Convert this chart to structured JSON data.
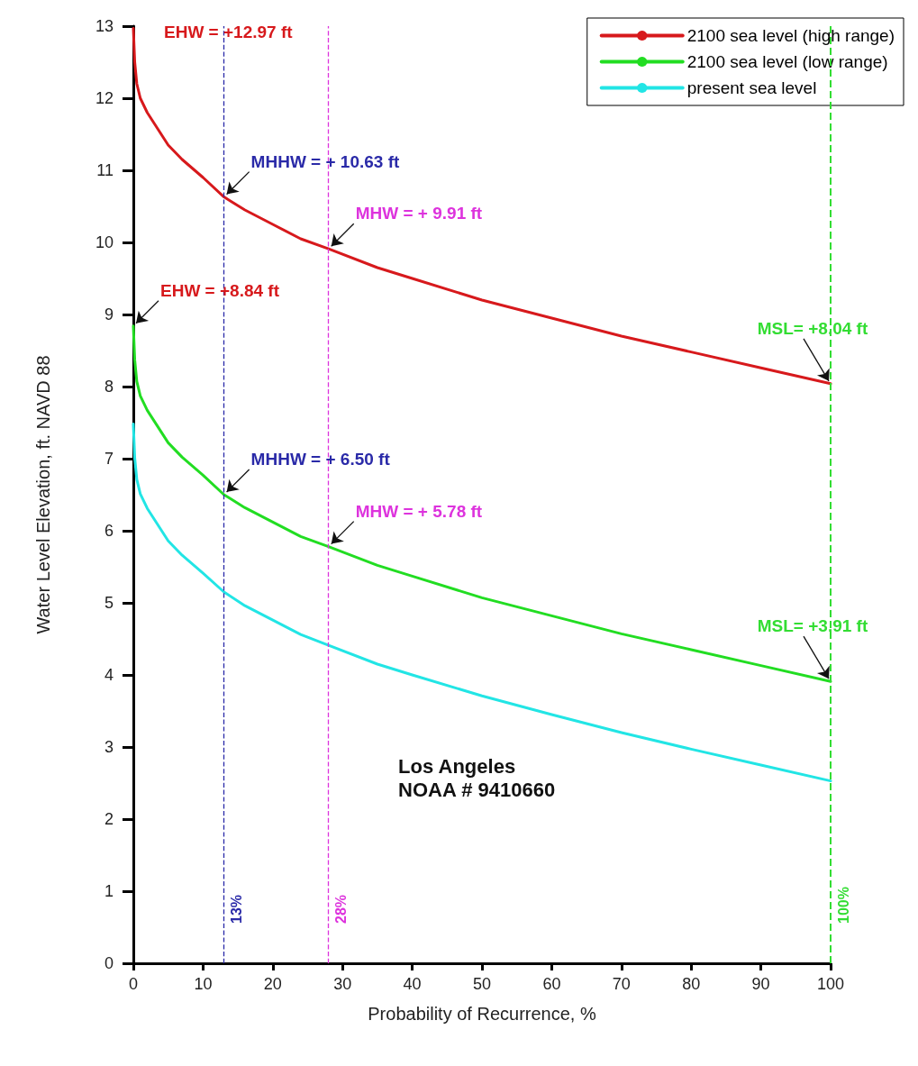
{
  "chart_data": {
    "type": "line",
    "xlabel": "Probability of Recurrence, %",
    "ylabel": "Water Level Elevation, ft. NAVD 88",
    "x": [
      0,
      0.2,
      0.5,
      1,
      2,
      3,
      5,
      7,
      10,
      13,
      16,
      20,
      24,
      28,
      35,
      40,
      50,
      60,
      70,
      80,
      90,
      100
    ],
    "series": [
      {
        "name": "2100 sea level (high range)",
        "color": "#d7191c",
        "values": [
          12.97,
          12.5,
          12.2,
          12.0,
          11.8,
          11.65,
          11.35,
          11.15,
          10.9,
          10.63,
          10.45,
          10.25,
          10.05,
          9.91,
          9.65,
          9.5,
          9.2,
          8.95,
          8.7,
          8.48,
          8.26,
          8.04
        ]
      },
      {
        "name": "2100 sea level (low range)",
        "color": "#22dd22",
        "values": [
          8.84,
          8.37,
          8.07,
          7.87,
          7.67,
          7.52,
          7.22,
          7.02,
          6.77,
          6.5,
          6.32,
          6.12,
          5.92,
          5.78,
          5.52,
          5.37,
          5.07,
          4.82,
          4.57,
          4.35,
          4.13,
          3.91
        ]
      },
      {
        "name": "present sea level",
        "color": "#22e5e5",
        "values": [
          7.48,
          7.01,
          6.71,
          6.51,
          6.31,
          6.16,
          5.86,
          5.66,
          5.41,
          5.15,
          4.96,
          4.76,
          4.56,
          4.41,
          4.15,
          4.0,
          3.71,
          3.45,
          3.2,
          2.97,
          2.75,
          2.53
        ]
      }
    ],
    "xlim": [
      0,
      100
    ],
    "xticks": [
      0,
      10,
      20,
      30,
      40,
      50,
      60,
      70,
      80,
      90,
      100
    ],
    "ylim": [
      0,
      13
    ],
    "yticks": [
      0,
      1,
      2,
      3,
      4,
      5,
      6,
      7,
      8,
      9,
      10,
      11,
      12,
      13
    ],
    "grid": false,
    "legend": "top right",
    "marker": "none",
    "line_style": "solid",
    "ref_lines": [
      {
        "axis": "x",
        "value": 13,
        "label": "13%",
        "color": "#2a2aa8",
        "line_style": "dashed"
      },
      {
        "axis": "x",
        "value": 28,
        "label": "28%",
        "color": "#dd33dd",
        "line_style": "dashed"
      },
      {
        "axis": "x",
        "value": 100,
        "label": "100%",
        "color": "#33dd33",
        "line_style": "dashed"
      }
    ],
    "annotations": [
      {
        "text": "EHW = +12.97 ft",
        "x": 0,
        "y": 12.97
      },
      {
        "text": "MHHW = + 10.63 ft",
        "x": 13,
        "y": 10.63
      },
      {
        "text": "MHW = + 9.91 ft",
        "x": 28,
        "y": 9.91
      },
      {
        "text": "EHW = +8.84 ft",
        "x": 0,
        "y": 8.84
      },
      {
        "text": "MSL= +8.04 ft",
        "x": 100,
        "y": 8.04
      },
      {
        "text": "MHHW = + 6.50 ft",
        "x": 13,
        "y": 6.5
      },
      {
        "text": "MHW = + 5.78 ft",
        "x": 28,
        "y": 5.78
      },
      {
        "text": "MSL= +3.91 ft",
        "x": 100,
        "y": 3.91
      },
      "Los Angeles",
      "NOAA # 9410660"
    ]
  }
}
